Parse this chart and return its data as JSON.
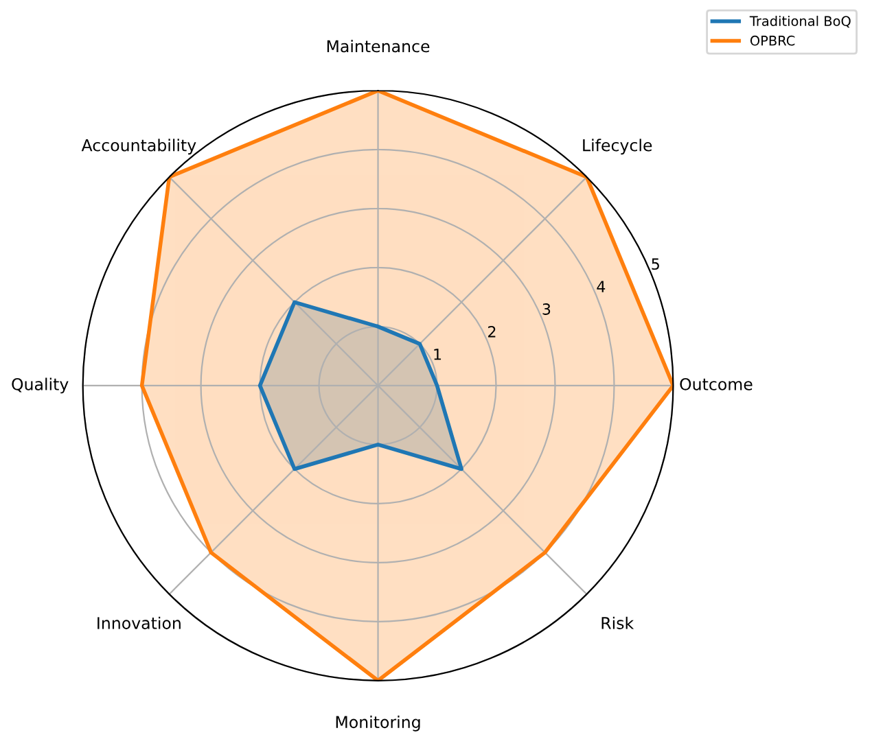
{
  "chart_data": {
    "type": "radar",
    "categories": [
      "Maintenance",
      "Lifecycle",
      "Outcome",
      "Risk",
      "Monitoring",
      "Innovation",
      "Quality",
      "Accountability"
    ],
    "series": [
      {
        "name": "Traditional BoQ",
        "color": "#1f77b4",
        "values": [
          1,
          1,
          1,
          2,
          1,
          2,
          2,
          2
        ]
      },
      {
        "name": "OPBRC",
        "color": "#ff7f0e",
        "values": [
          5,
          5,
          5,
          4,
          5,
          4,
          4,
          5
        ]
      }
    ],
    "ylim": [
      0,
      5
    ],
    "yticks": [
      1,
      2,
      3,
      4,
      5
    ],
    "grid": true,
    "legend": "top right"
  }
}
